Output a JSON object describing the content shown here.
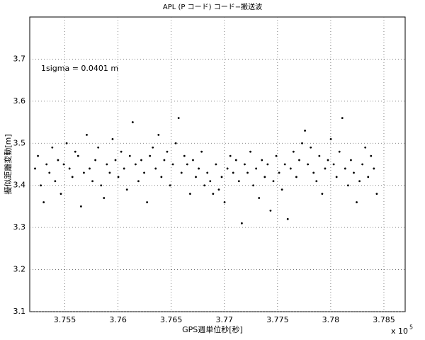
{
  "chart_data": {
    "type": "scatter",
    "title": "APL (P コード) コード−搬送波",
    "x_label": "GPS週単位秒[秒]",
    "y_label": "擬似距離変動[m]",
    "annotation": "1sigma = 0.0401 m",
    "x_exponent_base": "x 10",
    "x_exponent_power": "5",
    "color": "#000000",
    "grid": true,
    "xlim": [
      375170,
      378700
    ],
    "ylim": [
      3.1,
      3.8
    ],
    "xticks": [
      {
        "value": 375500,
        "label": "3.755"
      },
      {
        "value": 376000,
        "label": "3.76"
      },
      {
        "value": 376500,
        "label": "3.765"
      },
      {
        "value": 377000,
        "label": "3.77"
      },
      {
        "value": 377500,
        "label": "3.775"
      },
      {
        "value": 378000,
        "label": "3.78"
      },
      {
        "value": 378500,
        "label": "3.785"
      }
    ],
    "yticks": [
      3.1,
      3.2,
      3.3,
      3.4,
      3.5,
      3.6,
      3.7
    ],
    "x": [
      375220,
      375247,
      375274,
      375301,
      375328,
      375355,
      375382,
      375409,
      375436,
      375463,
      375490,
      375517,
      375544,
      375571,
      375598,
      375625,
      375652,
      375679,
      375706,
      375733,
      375760,
      375787,
      375814,
      375841,
      375868,
      375895,
      375922,
      375949,
      375976,
      376003,
      376030,
      376057,
      376084,
      376111,
      376138,
      376165,
      376192,
      376219,
      376246,
      376273,
      376300,
      376327,
      376354,
      376381,
      376408,
      376435,
      376462,
      376489,
      376516,
      376543,
      376570,
      376597,
      376624,
      376651,
      376678,
      376705,
      376732,
      376759,
      376786,
      376813,
      376840,
      376867,
      376894,
      376921,
      376948,
      376975,
      377002,
      377029,
      377056,
      377083,
      377110,
      377137,
      377164,
      377191,
      377218,
      377245,
      377272,
      377299,
      377326,
      377353,
      377380,
      377407,
      377434,
      377461,
      377488,
      377515,
      377542,
      377569,
      377596,
      377623,
      377650,
      377677,
      377704,
      377731,
      377758,
      377785,
      377812,
      377839,
      377866,
      377893,
      377920,
      377947,
      377974,
      378001,
      378028,
      378055,
      378082,
      378109,
      378136,
      378163,
      378190,
      378217,
      378244,
      378271,
      378298,
      378325,
      378352,
      378379,
      378406,
      378433
    ],
    "values": [
      3.44,
      3.47,
      3.4,
      3.36,
      3.45,
      3.43,
      3.49,
      3.41,
      3.46,
      3.38,
      3.45,
      3.5,
      3.44,
      3.42,
      3.48,
      3.47,
      3.35,
      3.43,
      3.52,
      3.44,
      3.41,
      3.46,
      3.49,
      3.4,
      3.37,
      3.45,
      3.43,
      3.51,
      3.46,
      3.42,
      3.48,
      3.44,
      3.39,
      3.47,
      3.55,
      3.45,
      3.41,
      3.46,
      3.43,
      3.36,
      3.47,
      3.49,
      3.44,
      3.52,
      3.42,
      3.46,
      3.48,
      3.4,
      3.45,
      3.5,
      3.56,
      3.43,
      3.47,
      3.45,
      3.38,
      3.46,
      3.42,
      3.44,
      3.48,
      3.4,
      3.43,
      3.41,
      3.38,
      3.45,
      3.39,
      3.42,
      3.36,
      3.44,
      3.47,
      3.43,
      3.46,
      3.41,
      3.31,
      3.45,
      3.43,
      3.48,
      3.4,
      3.44,
      3.37,
      3.46,
      3.42,
      3.45,
      3.34,
      3.41,
      3.47,
      3.43,
      3.39,
      3.45,
      3.32,
      3.44,
      3.48,
      3.42,
      3.46,
      3.5,
      3.53,
      3.45,
      3.49,
      3.43,
      3.41,
      3.47,
      3.38,
      3.44,
      3.46,
      3.51,
      3.45,
      3.42,
      3.48,
      3.56,
      3.44,
      3.4,
      3.46,
      3.43,
      3.36,
      3.41,
      3.45,
      3.49,
      3.42,
      3.47,
      3.44,
      3.38
    ]
  }
}
